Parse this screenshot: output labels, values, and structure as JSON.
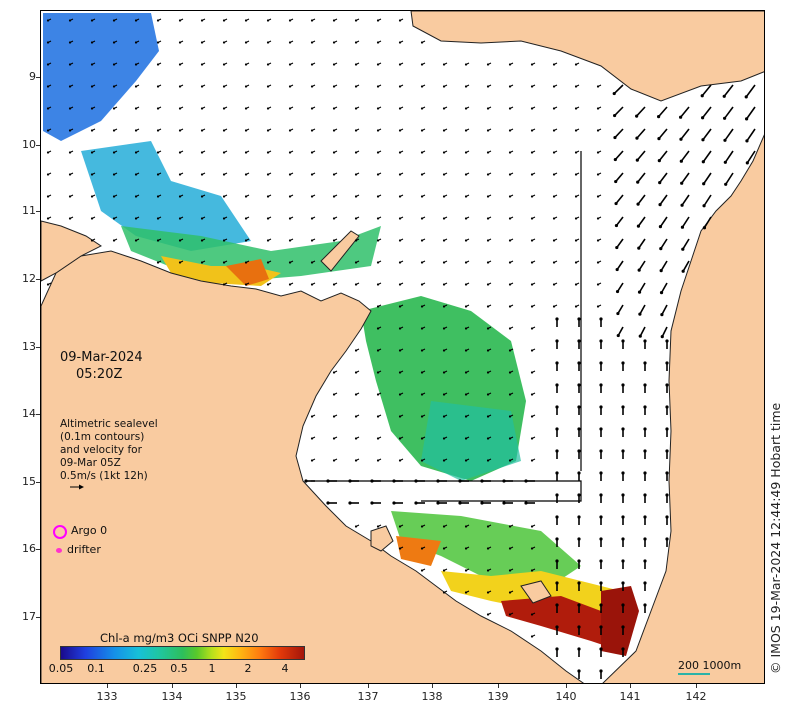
{
  "map": {
    "lat_ticks": [
      "9",
      "10",
      "11",
      "12",
      "13",
      "14",
      "15",
      "16",
      "17"
    ],
    "lon_ticks": [
      "133",
      "134",
      "135",
      "136",
      "137",
      "138",
      "139",
      "140",
      "141",
      "142"
    ],
    "colors": {
      "land": "#f9cba0",
      "ocean": "#ffffff",
      "coast": "#222222",
      "vector": "#000000"
    }
  },
  "overlay": {
    "date": "09-Mar-2024",
    "time": "05:20Z",
    "altimetry_lines": [
      "Altimetric sealevel",
      "(0.1m contours)",
      "and velocity for",
      "09-Mar 05Z",
      "0.5m/s (1kt 12h)"
    ],
    "argo_label": "Argo 0",
    "drifter_label": "drifter",
    "argo_color": "#ff00ff",
    "drifter_color": "#ff33cc"
  },
  "colorbar": {
    "title": "Chl-a mg/m3 OCi SNPP N20",
    "ticks": [
      "0.05",
      "0.1",
      "0.25",
      "0.5",
      "1",
      "2",
      "4"
    ]
  },
  "scalebar": {
    "label": "200  1000m"
  },
  "timestamp": "© IMOS 19-Mar-2024 12:44:49 Hobart time"
}
